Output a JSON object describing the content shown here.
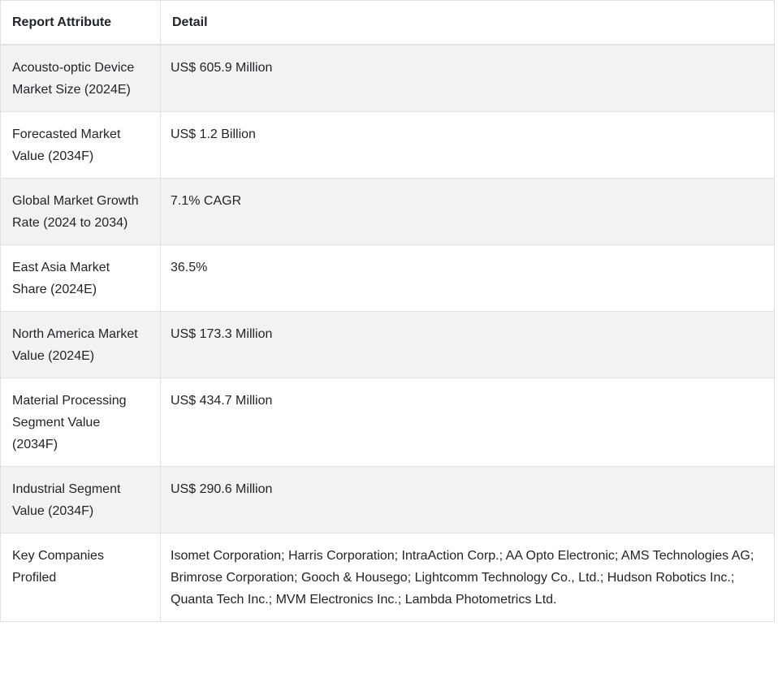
{
  "table": {
    "headers": {
      "attribute": "Report Attribute",
      "detail": "Detail"
    },
    "rows": [
      {
        "attribute": "Acousto-optic Device Market Size (2024E)",
        "detail": "US$ 605.9 Million"
      },
      {
        "attribute": "Forecasted Market Value (2034F)",
        "detail": "US$ 1.2 Billion"
      },
      {
        "attribute": "Global Market Growth Rate (2024 to 2034)",
        "detail": "7.1% CAGR"
      },
      {
        "attribute": "East Asia Market Share (2024E)",
        "detail": "36.5%"
      },
      {
        "attribute": "North America Market Value (2024E)",
        "detail": "US$ 173.3 Million"
      },
      {
        "attribute": "Material Processing Segment Value (2034F)",
        "detail": "US$ 434.7 Million"
      },
      {
        "attribute": "Industrial Segment Value (2034F)",
        "detail": "US$ 290.6 Million"
      },
      {
        "attribute": "Key Companies Profiled",
        "detail": "Isomet Corporation; Harris Corporation; IntraAction Corp.; AA Opto Electronic; AMS Technologies AG; Brimrose Corporation; Gooch & Housego; Lightcomm Technology Co., Ltd.; Hudson Robotics Inc.; Quanta Tech Inc.; MVM Electronics Inc.; Lambda Photometrics Ltd."
      }
    ]
  },
  "colors": {
    "row_stripe": "#f2f2f2",
    "row_plain": "#ffffff",
    "border": "#dee2e6",
    "text": "#212529",
    "background": "#ffffff"
  }
}
